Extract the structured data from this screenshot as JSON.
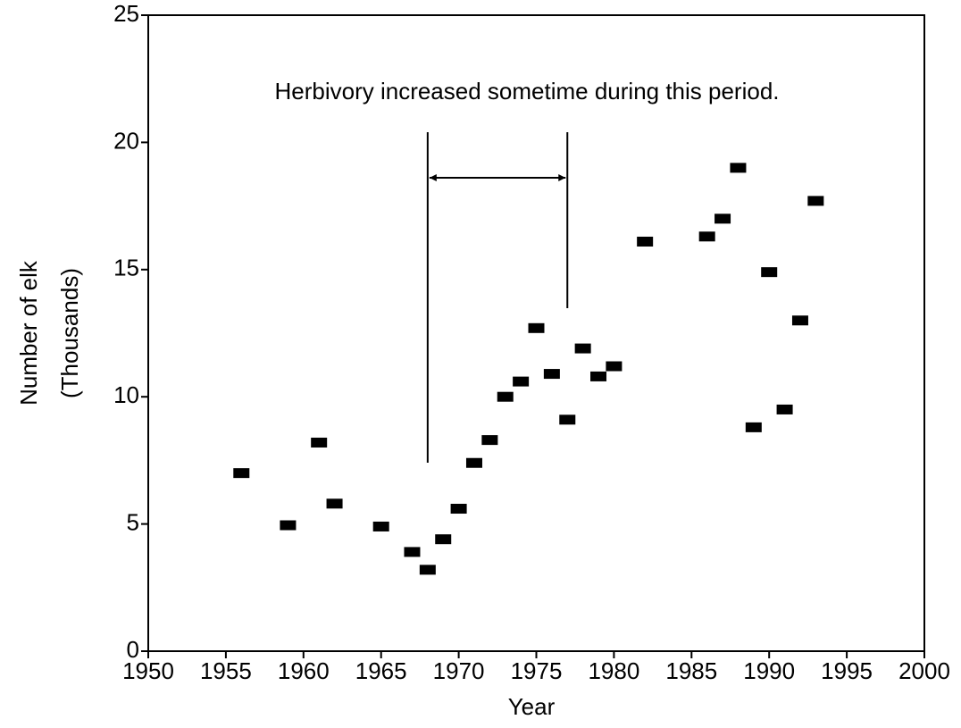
{
  "chart_data": {
    "type": "scatter",
    "x_label": "Year",
    "y_label": [
      "Number of elk",
      "(Thousands)"
    ],
    "annotation": {
      "text": "Herbivory increased sometime during this period.",
      "period": [
        1968,
        1977
      ]
    },
    "x": [
      1956,
      1959,
      1961,
      1962,
      1965,
      1967,
      1968,
      1969,
      1970,
      1971,
      1972,
      1973,
      1974,
      1975,
      1976,
      1977,
      1978,
      1979,
      1980,
      1982,
      1986,
      1987,
      1988,
      1989,
      1990,
      1991,
      1992,
      1993
    ],
    "values": [
      7.0,
      4.95,
      8.2,
      5.8,
      4.9,
      3.9,
      3.2,
      4.4,
      5.6,
      7.4,
      8.3,
      10.0,
      10.6,
      12.7,
      10.9,
      9.1,
      11.9,
      10.8,
      11.2,
      16.1,
      16.3,
      17.0,
      19.0,
      8.8,
      14.9,
      9.5,
      13.0,
      17.7
    ],
    "color": "#000000",
    "xlim": [
      1950,
      2000
    ],
    "xticks": [
      1950,
      1955,
      1960,
      1965,
      1970,
      1975,
      1980,
      1985,
      1990,
      1995,
      2000
    ],
    "ylim": [
      0,
      25
    ],
    "yticks": [
      0,
      5,
      10,
      15,
      20,
      25
    ],
    "grid": false
  }
}
